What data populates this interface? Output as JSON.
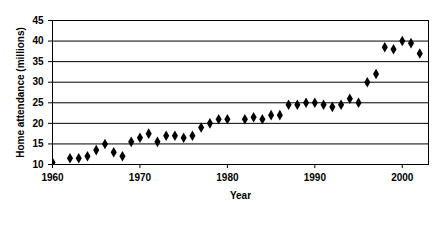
{
  "chart_data": {
    "type": "scatter",
    "x_label": "Year",
    "y_label": "Home attendance (millions)",
    "x": [
      1960,
      1962,
      1963,
      1964,
      1965,
      1966,
      1967,
      1968,
      1969,
      1970,
      1971,
      1972,
      1973,
      1974,
      1975,
      1976,
      1977,
      1978,
      1979,
      1980,
      1982,
      1983,
      1984,
      1985,
      1986,
      1987,
      1988,
      1989,
      1990,
      1991,
      1992,
      1993,
      1994,
      1995,
      1996,
      1997,
      1998,
      1999,
      2000,
      2001,
      2002
    ],
    "values": [
      10.5,
      11.5,
      11.5,
      12,
      13.5,
      15,
      13,
      12,
      15.5,
      16.5,
      17.5,
      15.5,
      17,
      17,
      16.5,
      17,
      19,
      20,
      21,
      21,
      21,
      21.5,
      21,
      22,
      22,
      24.5,
      24.5,
      25,
      25,
      24.5,
      24,
      24.5,
      26,
      25,
      30,
      32,
      38.5,
      38,
      40,
      39.5,
      37
    ],
    "color": "#000000",
    "marker": "diamond",
    "xlim": [
      1960,
      2003
    ],
    "xticks": [
      1960,
      1970,
      1980,
      1990,
      2000
    ],
    "ylim": [
      10,
      45
    ],
    "yticks": [
      10,
      15,
      20,
      25,
      30,
      35,
      40,
      45
    ],
    "grid": true
  }
}
